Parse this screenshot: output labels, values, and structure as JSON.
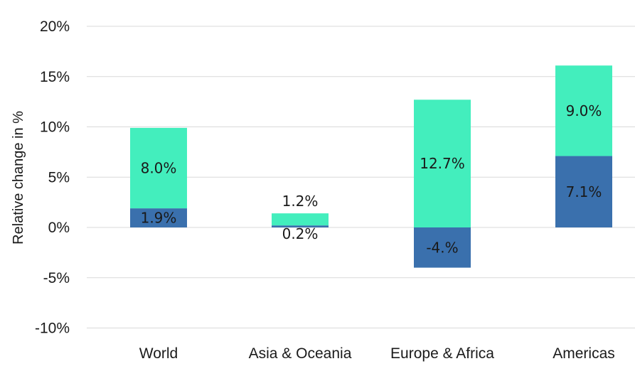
{
  "chart_data": {
    "type": "bar",
    "stacked": true,
    "ylabel": "Relative change in %",
    "xlabel": "",
    "ylim": [
      -10,
      20
    ],
    "yticks": [
      -10,
      -5,
      0,
      5,
      10,
      15,
      20
    ],
    "ytick_labels": [
      "-10%",
      "-5%",
      "0%",
      "5%",
      "10%",
      "15%",
      "20%"
    ],
    "grid": true,
    "categories": [
      "World",
      "Asia & Oceania",
      "Europe & Africa",
      "Americas"
    ],
    "series": [
      {
        "values": [
          1.9,
          0.2,
          -4.0,
          7.1
        ],
        "labels": [
          "1.9%",
          "0.2%",
          "-4.%",
          "7.1%"
        ],
        "color": "#3a70ad"
      },
      {
        "values": [
          8.0,
          1.2,
          12.7,
          9.0
        ],
        "labels": [
          "8.0%",
          "1.2%",
          "12.7%",
          "9.0%"
        ],
        "color": "#43eebd"
      }
    ]
  }
}
